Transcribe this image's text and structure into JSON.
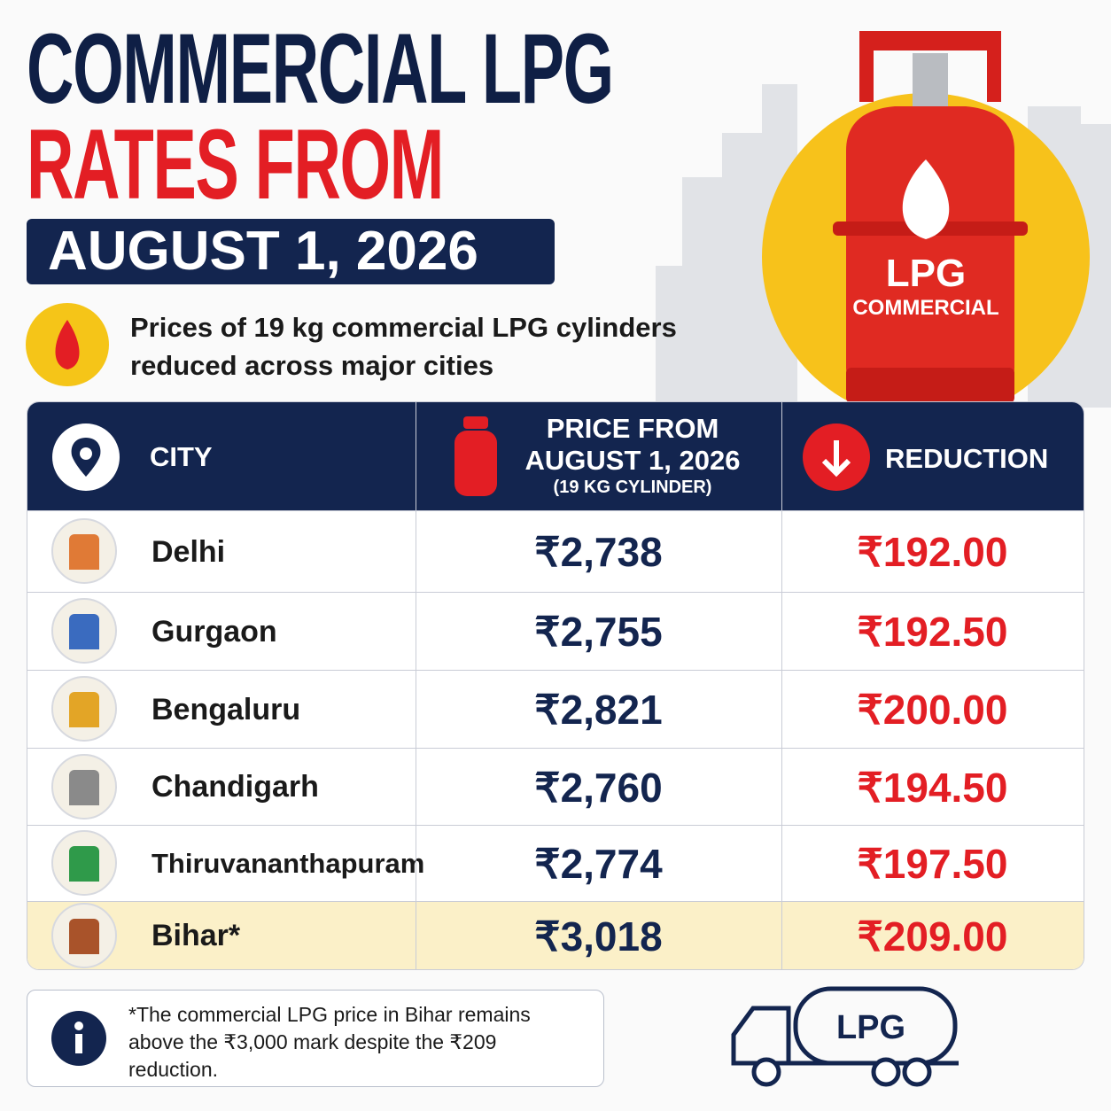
{
  "header": {
    "title_line1": "COMMERCIAL LPG",
    "title_line2": "RATES FROM",
    "date": "AUGUST 1, 2026",
    "subtitle_line1": "Prices of 19 kg commercial LPG cylinders",
    "subtitle_line2": "reduced across major cities"
  },
  "cylinder": {
    "label": "LPG",
    "sublabel": "COMMERCIAL"
  },
  "table": {
    "city_header": "CITY",
    "price_header_line1": "PRICE FROM",
    "price_header_line2": "AUGUST 1, 2026",
    "price_header_line3": "(19 KG CYLINDER)",
    "reduction_header": "REDUCTION",
    "rows": [
      [
        "Delhi",
        "₹2,738",
        "₹192.00"
      ],
      [
        "Gurgaon",
        "₹2,755",
        "₹192.50"
      ],
      [
        "Bengaluru",
        "₹2,821",
        "₹200.00"
      ],
      [
        "Chandigarh",
        "₹2,760",
        "₹194.50"
      ],
      [
        "Thiruvananthapuram",
        "₹2,774",
        "₹197.50"
      ],
      [
        "Bihar*",
        "₹3,018",
        "₹209.00"
      ]
    ]
  },
  "note": "*The commercial LPG price in Bihar remains above the ₹3,000 mark despite the ₹209 reduction.",
  "truck": {
    "label": "LPG"
  }
}
